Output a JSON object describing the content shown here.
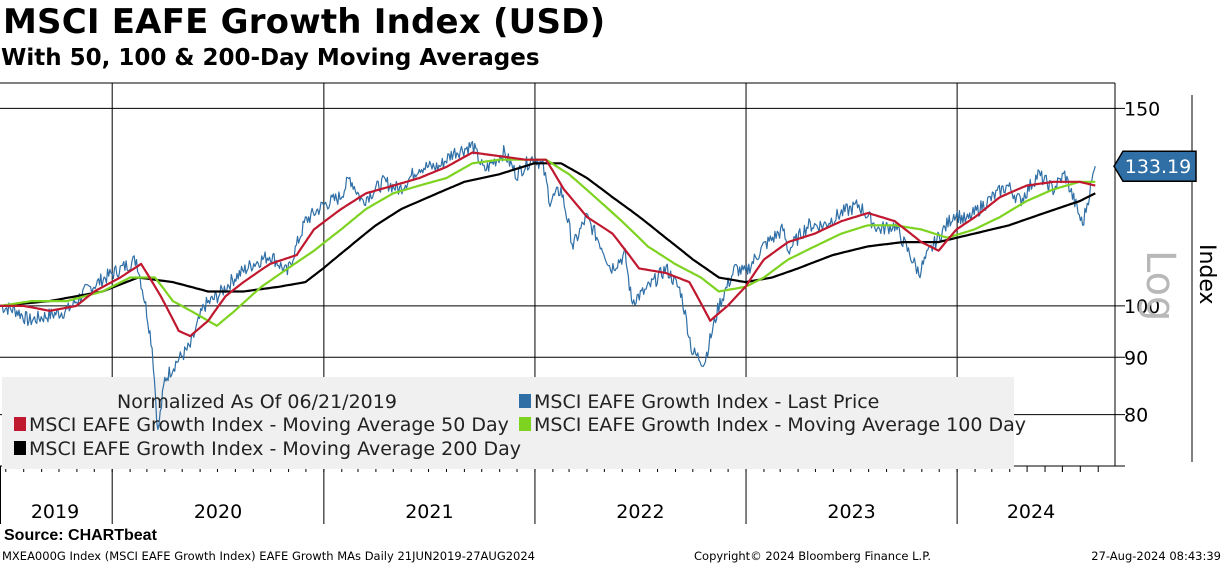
{
  "title": "MSCI EAFE Growth Index (USD)",
  "subtitle": "With 50, 100 & 200-Day Moving Averages",
  "source": "Source: CHARTbeat",
  "footer": {
    "left": "MXEA000G Index (MSCI EAFE Growth Index) EAFE Growth MAs  Daily 21JUN2019-27AUG2024",
    "center": "Copyright© 2024 Bloomberg Finance L.P.",
    "right": "27-Aug-2024 08:43:39"
  },
  "chart_data": {
    "type": "line",
    "yscale": "log",
    "ylim": [
      72,
      158
    ],
    "yticks": [
      80,
      90,
      100,
      150
    ],
    "ylabel": "Index",
    "scale_label": "Log",
    "xlim": [
      "2019-06-21",
      "2024-09-30"
    ],
    "year_labels": [
      "2019",
      "2020",
      "2021",
      "2022",
      "2023",
      "2024"
    ],
    "year_boundaries": [
      "2020-01-01",
      "2021-01-01",
      "2022-01-01",
      "2023-01-01",
      "2024-01-01"
    ],
    "colors": {
      "price": "#2f6fa6",
      "ma50": "#c0182f",
      "ma100": "#7ed321",
      "ma200": "#000000",
      "grid": "#000000",
      "last_tag": "#2f6fa6"
    },
    "last_value_label": "133.19",
    "legend": {
      "note": "Normalized As Of 06/21/2019",
      "entries": [
        {
          "name": "MSCI EAFE Growth Index - Last Price",
          "color": "#2f6fa6"
        },
        {
          "name": "MSCI EAFE Growth Index - Moving Average 50 Day",
          "color": "#c0182f"
        },
        {
          "name": "MSCI EAFE Growth Index - Moving Average 100 Day",
          "color": "#7ed321"
        },
        {
          "name": "MSCI EAFE Growth Index - Moving Average 200 Day",
          "color": "#000000"
        }
      ]
    },
    "series": [
      {
        "name": "MSCI EAFE Growth Index - Last Price",
        "key": "price",
        "points": [
          [
            "2019-06-21",
            100
          ],
          [
            "2019-07-20",
            99
          ],
          [
            "2019-08-10",
            97
          ],
          [
            "2019-09-10",
            98
          ],
          [
            "2019-10-15",
            99
          ],
          [
            "2019-11-15",
            103
          ],
          [
            "2019-12-20",
            106
          ],
          [
            "2020-01-17",
            108
          ],
          [
            "2020-02-12",
            110
          ],
          [
            "2020-02-28",
            100
          ],
          [
            "2020-03-10",
            92
          ],
          [
            "2020-03-20",
            77
          ],
          [
            "2020-04-01",
            86
          ],
          [
            "2020-04-20",
            89
          ],
          [
            "2020-05-15",
            92
          ],
          [
            "2020-06-08",
            100
          ],
          [
            "2020-07-01",
            102
          ],
          [
            "2020-07-31",
            106
          ],
          [
            "2020-08-31",
            109
          ],
          [
            "2020-10-01",
            111
          ],
          [
            "2020-10-30",
            107
          ],
          [
            "2020-11-30",
            119
          ],
          [
            "2020-12-31",
            123
          ],
          [
            "2021-01-29",
            125
          ],
          [
            "2021-02-15",
            130
          ],
          [
            "2021-03-08",
            124
          ],
          [
            "2021-04-15",
            129
          ],
          [
            "2021-05-12",
            127
          ],
          [
            "2021-06-15",
            133
          ],
          [
            "2021-07-19",
            133
          ],
          [
            "2021-08-13",
            137
          ],
          [
            "2021-08-31",
            138
          ],
          [
            "2021-09-15",
            139
          ],
          [
            "2021-10-05",
            132
          ],
          [
            "2021-11-08",
            137
          ],
          [
            "2021-11-30",
            131
          ],
          [
            "2021-12-31",
            136
          ],
          [
            "2022-01-15",
            133
          ],
          [
            "2022-01-27",
            124
          ],
          [
            "2022-02-15",
            127
          ],
          [
            "2022-03-08",
            113
          ],
          [
            "2022-03-31",
            120
          ],
          [
            "2022-04-30",
            112
          ],
          [
            "2022-05-12",
            108
          ],
          [
            "2022-06-06",
            111
          ],
          [
            "2022-06-17",
            101
          ],
          [
            "2022-07-10",
            103
          ],
          [
            "2022-08-16",
            108
          ],
          [
            "2022-09-10",
            103
          ],
          [
            "2022-09-30",
            91
          ],
          [
            "2022-10-21",
            89
          ],
          [
            "2022-11-15",
            100
          ],
          [
            "2022-12-13",
            108
          ],
          [
            "2022-12-31",
            107
          ],
          [
            "2023-01-31",
            113
          ],
          [
            "2023-03-06",
            117
          ],
          [
            "2023-03-15",
            112
          ],
          [
            "2023-04-18",
            118
          ],
          [
            "2023-05-15",
            118
          ],
          [
            "2023-06-15",
            121
          ],
          [
            "2023-07-15",
            123
          ],
          [
            "2023-08-18",
            117
          ],
          [
            "2023-09-15",
            118
          ],
          [
            "2023-10-27",
            107
          ],
          [
            "2023-11-15",
            112
          ],
          [
            "2023-12-28",
            121
          ],
          [
            "2024-01-17",
            119
          ],
          [
            "2024-02-15",
            123
          ],
          [
            "2024-03-28",
            128
          ],
          [
            "2024-04-19",
            124
          ],
          [
            "2024-05-20",
            131
          ],
          [
            "2024-06-15",
            127
          ],
          [
            "2024-07-05",
            131
          ],
          [
            "2024-08-05",
            118
          ],
          [
            "2024-08-27",
            133.19
          ]
        ]
      },
      {
        "name": "MSCI EAFE Growth Index - Moving Average 50 Day",
        "key": "ma50",
        "points": [
          [
            "2019-06-21",
            100
          ],
          [
            "2019-08-01",
            100
          ],
          [
            "2019-09-15",
            99
          ],
          [
            "2019-10-31",
            100
          ],
          [
            "2019-12-01",
            103
          ],
          [
            "2020-01-15",
            106
          ],
          [
            "2020-02-20",
            109
          ],
          [
            "2020-03-25",
            102
          ],
          [
            "2020-04-25",
            95
          ],
          [
            "2020-05-15",
            94
          ],
          [
            "2020-06-15",
            97
          ],
          [
            "2020-07-15",
            102
          ],
          [
            "2020-08-15",
            105
          ],
          [
            "2020-09-30",
            109
          ],
          [
            "2020-11-15",
            111
          ],
          [
            "2020-12-15",
            117
          ],
          [
            "2021-01-31",
            122
          ],
          [
            "2021-03-15",
            126
          ],
          [
            "2021-05-01",
            128
          ],
          [
            "2021-06-15",
            130
          ],
          [
            "2021-08-01",
            133
          ],
          [
            "2021-09-15",
            137
          ],
          [
            "2021-10-31",
            136
          ],
          [
            "2021-12-15",
            135
          ],
          [
            "2022-01-20",
            135
          ],
          [
            "2022-02-20",
            127
          ],
          [
            "2022-04-01",
            120
          ],
          [
            "2022-05-15",
            116
          ],
          [
            "2022-06-30",
            108
          ],
          [
            "2022-08-15",
            107
          ],
          [
            "2022-09-25",
            105
          ],
          [
            "2022-10-31",
            97
          ],
          [
            "2022-11-30",
            100
          ],
          [
            "2022-12-31",
            104
          ],
          [
            "2023-02-01",
            110
          ],
          [
            "2023-03-15",
            114
          ],
          [
            "2023-04-30",
            116
          ],
          [
            "2023-06-15",
            119
          ],
          [
            "2023-07-31",
            121
          ],
          [
            "2023-09-15",
            119
          ],
          [
            "2023-10-31",
            114
          ],
          [
            "2023-11-30",
            112
          ],
          [
            "2023-12-31",
            117
          ],
          [
            "2024-02-01",
            120
          ],
          [
            "2024-03-15",
            125
          ],
          [
            "2024-04-30",
            128
          ],
          [
            "2024-06-15",
            129
          ],
          [
            "2024-07-31",
            129
          ],
          [
            "2024-08-27",
            128
          ]
        ]
      },
      {
        "name": "MSCI EAFE Growth Index - Moving Average 100 Day",
        "key": "ma100",
        "points": [
          [
            "2019-06-21",
            100
          ],
          [
            "2019-08-15",
            101
          ],
          [
            "2019-10-15",
            101
          ],
          [
            "2019-12-15",
            103
          ],
          [
            "2020-02-01",
            106
          ],
          [
            "2020-03-15",
            106
          ],
          [
            "2020-04-15",
            101
          ],
          [
            "2020-05-31",
            98
          ],
          [
            "2020-06-30",
            96
          ],
          [
            "2020-07-31",
            99
          ],
          [
            "2020-09-15",
            104
          ],
          [
            "2020-10-31",
            108
          ],
          [
            "2020-12-15",
            112
          ],
          [
            "2021-01-31",
            117
          ],
          [
            "2021-03-15",
            122
          ],
          [
            "2021-05-01",
            126
          ],
          [
            "2021-06-15",
            128
          ],
          [
            "2021-08-01",
            130
          ],
          [
            "2021-09-15",
            134
          ],
          [
            "2021-10-31",
            135
          ],
          [
            "2021-12-15",
            135
          ],
          [
            "2022-01-20",
            135
          ],
          [
            "2022-03-01",
            131
          ],
          [
            "2022-04-15",
            125
          ],
          [
            "2022-05-31",
            119
          ],
          [
            "2022-07-15",
            113
          ],
          [
            "2022-08-31",
            109
          ],
          [
            "2022-10-15",
            106
          ],
          [
            "2022-11-15",
            103
          ],
          [
            "2022-12-31",
            104
          ],
          [
            "2023-02-01",
            106
          ],
          [
            "2023-03-15",
            110
          ],
          [
            "2023-04-30",
            113
          ],
          [
            "2023-06-15",
            116
          ],
          [
            "2023-07-31",
            118
          ],
          [
            "2023-09-15",
            118
          ],
          [
            "2023-10-31",
            117
          ],
          [
            "2023-12-15",
            115
          ],
          [
            "2024-01-31",
            117
          ],
          [
            "2024-03-15",
            120
          ],
          [
            "2024-04-30",
            124
          ],
          [
            "2024-06-15",
            127
          ],
          [
            "2024-07-31",
            129
          ],
          [
            "2024-08-27",
            129
          ]
        ]
      },
      {
        "name": "MSCI EAFE Growth Index - Moving Average 200 Day",
        "key": "ma200",
        "points": [
          [
            "2019-06-21",
            100
          ],
          [
            "2019-09-15",
            101
          ],
          [
            "2019-12-15",
            103
          ],
          [
            "2020-02-15",
            106
          ],
          [
            "2020-04-15",
            105
          ],
          [
            "2020-06-15",
            103
          ],
          [
            "2020-08-15",
            103
          ],
          [
            "2020-10-15",
            104
          ],
          [
            "2020-11-30",
            105
          ],
          [
            "2020-12-31",
            108
          ],
          [
            "2021-02-15",
            113
          ],
          [
            "2021-04-01",
            118
          ],
          [
            "2021-05-15",
            122
          ],
          [
            "2021-07-01",
            125
          ],
          [
            "2021-09-01",
            129
          ],
          [
            "2021-10-31",
            131
          ],
          [
            "2021-12-31",
            134
          ],
          [
            "2022-02-15",
            134
          ],
          [
            "2022-04-01",
            130
          ],
          [
            "2022-05-15",
            125
          ],
          [
            "2022-07-01",
            120
          ],
          [
            "2022-08-15",
            115
          ],
          [
            "2022-10-01",
            110
          ],
          [
            "2022-11-15",
            106
          ],
          [
            "2022-12-31",
            105
          ],
          [
            "2023-02-15",
            106
          ],
          [
            "2023-04-01",
            108
          ],
          [
            "2023-05-31",
            111
          ],
          [
            "2023-07-31",
            113
          ],
          [
            "2023-09-30",
            114
          ],
          [
            "2023-11-30",
            114
          ],
          [
            "2024-01-31",
            116
          ],
          [
            "2024-03-31",
            118
          ],
          [
            "2024-05-31",
            121
          ],
          [
            "2024-07-31",
            124
          ],
          [
            "2024-08-27",
            126
          ]
        ]
      }
    ]
  }
}
